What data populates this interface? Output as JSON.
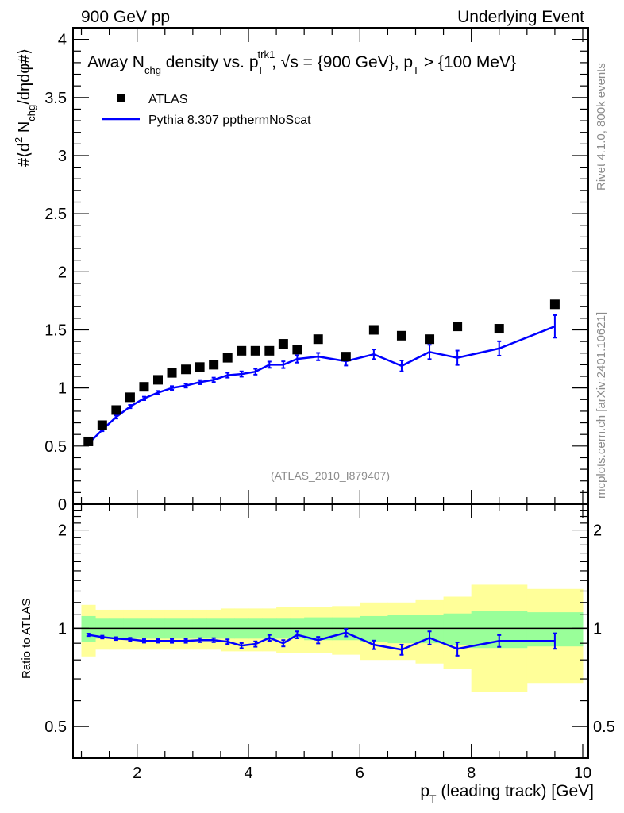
{
  "header": {
    "left": "900 GeV pp",
    "right": "Underlying Event"
  },
  "side_text": {
    "rivet": "Rivet 4.1.0,  800k events",
    "mcplots": "mcplots.cern.ch [arXiv:2401.10621]"
  },
  "colors": {
    "data": "#000000",
    "mc": "#0000ff",
    "band_inner": "#99ff99",
    "band_outer": "#ffff99",
    "watermark": "#8c8c8c"
  },
  "chart_data": [
    {
      "type": "scatter",
      "title_parts": {
        "pre": "Away N",
        "sub1": "chg",
        "mid": " density vs. p",
        "sup": "trk1",
        "sub2": "T",
        "post1": ", √s = {900 GeV}, p",
        "sub3": "T",
        "post2": " > {100 MeV}"
      },
      "ylabel_parts": {
        "pre": "#⟨d",
        "sup": "2",
        "mid": " N",
        "sub": "chg",
        "post": "/dηdφ#⟩"
      },
      "watermark": "(ATLAS_2010_I879407)",
      "xlim": [
        0.85,
        10.1
      ],
      "ylim": [
        0,
        4.1
      ],
      "yticks": [
        0,
        0.5,
        1,
        1.5,
        2,
        2.5,
        3,
        3.5,
        4
      ],
      "ytick_labels": [
        "0",
        "0.5",
        "1",
        "1.5",
        "2",
        "2.5",
        "3",
        "3.5",
        "4"
      ],
      "legend_position": "top-left",
      "legend": [
        {
          "label": "ATLAS",
          "marker": "square"
        },
        {
          "label": "Pythia 8.307 ppthermNoScat",
          "marker": "line"
        }
      ],
      "x": [
        1.125,
        1.375,
        1.625,
        1.875,
        2.125,
        2.375,
        2.625,
        2.875,
        3.125,
        3.375,
        3.625,
        3.875,
        4.125,
        4.375,
        4.625,
        4.875,
        5.25,
        5.75,
        6.25,
        6.75,
        7.25,
        7.75,
        8.5,
        9.5
      ],
      "series": [
        {
          "name": "ATLAS",
          "values": [
            0.54,
            0.68,
            0.81,
            0.92,
            1.01,
            1.07,
            1.13,
            1.16,
            1.18,
            1.2,
            1.26,
            1.32,
            1.32,
            1.32,
            1.38,
            1.33,
            1.42,
            1.27,
            1.5,
            1.45,
            1.42,
            1.53,
            1.51,
            1.72
          ]
        },
        {
          "name": "Pythia 8.307 ppthermNoScat",
          "values": [
            0.52,
            0.64,
            0.75,
            0.84,
            0.91,
            0.96,
            1.0,
            1.02,
            1.05,
            1.07,
            1.11,
            1.12,
            1.14,
            1.2,
            1.2,
            1.25,
            1.27,
            1.23,
            1.29,
            1.19,
            1.31,
            1.26,
            1.34,
            1.53
          ],
          "errors": [
            0.004,
            0.005,
            0.006,
            0.007,
            0.008,
            0.008,
            0.009,
            0.01,
            0.011,
            0.012,
            0.014,
            0.016,
            0.018,
            0.02,
            0.022,
            0.025,
            0.025,
            0.03,
            0.035,
            0.04,
            0.055,
            0.055,
            0.055,
            0.09
          ]
        }
      ]
    },
    {
      "type": "line",
      "ylabel": "Ratio to ATLAS",
      "xlabel_parts": {
        "pre": "p",
        "sub": "T",
        "post": " (leading track) [GeV]"
      },
      "xlim": [
        0.85,
        10.1
      ],
      "xticks": [
        2,
        4,
        6,
        8,
        10
      ],
      "xtick_labels": [
        "2",
        "4",
        "6",
        "8",
        "10"
      ],
      "ylim": [
        0.4,
        2.4
      ],
      "yscale": "log",
      "yticks": [
        0.5,
        1,
        2
      ],
      "ytick_labels": [
        "0.5",
        "1",
        "2"
      ],
      "reference_line": 1,
      "bins": [
        [
          1,
          1.25
        ],
        [
          1.25,
          1.5
        ],
        [
          1.5,
          1.75
        ],
        [
          1.75,
          2
        ],
        [
          2,
          2.25
        ],
        [
          2.25,
          2.5
        ],
        [
          2.5,
          2.75
        ],
        [
          2.75,
          3
        ],
        [
          3,
          3.25
        ],
        [
          3.25,
          3.5
        ],
        [
          3.5,
          3.75
        ],
        [
          3.75,
          4
        ],
        [
          4,
          4.25
        ],
        [
          4.25,
          4.5
        ],
        [
          4.5,
          4.75
        ],
        [
          4.75,
          5
        ],
        [
          5,
          5.5
        ],
        [
          5.5,
          6
        ],
        [
          6,
          6.5
        ],
        [
          6.5,
          7
        ],
        [
          7,
          7.5
        ],
        [
          7.5,
          8
        ],
        [
          8,
          9
        ],
        [
          9,
          10
        ]
      ],
      "band_inner": [
        0.09,
        0.07,
        0.07,
        0.07,
        0.07,
        0.07,
        0.07,
        0.07,
        0.07,
        0.07,
        0.07,
        0.07,
        0.07,
        0.07,
        0.07,
        0.07,
        0.08,
        0.08,
        0.09,
        0.1,
        0.1,
        0.11,
        0.13,
        0.12
      ],
      "band_outer": [
        0.18,
        0.14,
        0.14,
        0.14,
        0.14,
        0.14,
        0.14,
        0.14,
        0.14,
        0.14,
        0.15,
        0.15,
        0.15,
        0.15,
        0.16,
        0.16,
        0.16,
        0.17,
        0.2,
        0.2,
        0.22,
        0.25,
        0.36,
        0.32
      ],
      "series": [
        {
          "name": "Pythia 8.307 ppthermNoScat / ATLAS",
          "x": [
            1.125,
            1.375,
            1.625,
            1.875,
            2.125,
            2.375,
            2.625,
            2.875,
            3.125,
            3.375,
            3.625,
            3.875,
            4.125,
            4.375,
            4.625,
            4.875,
            5.25,
            5.75,
            6.25,
            6.75,
            7.25,
            7.75,
            8.5,
            9.5
          ],
          "values": [
            0.955,
            0.94,
            0.93,
            0.925,
            0.915,
            0.915,
            0.915,
            0.915,
            0.92,
            0.92,
            0.91,
            0.885,
            0.895,
            0.935,
            0.9,
            0.955,
            0.92,
            0.97,
            0.89,
            0.86,
            0.935,
            0.865,
            0.915,
            0.915
          ],
          "errors": [
            0.003,
            0.004,
            0.004,
            0.005,
            0.006,
            0.006,
            0.007,
            0.007,
            0.008,
            0.008,
            0.01,
            0.011,
            0.012,
            0.014,
            0.015,
            0.018,
            0.016,
            0.02,
            0.022,
            0.026,
            0.038,
            0.036,
            0.033,
            0.045
          ]
        }
      ]
    }
  ]
}
